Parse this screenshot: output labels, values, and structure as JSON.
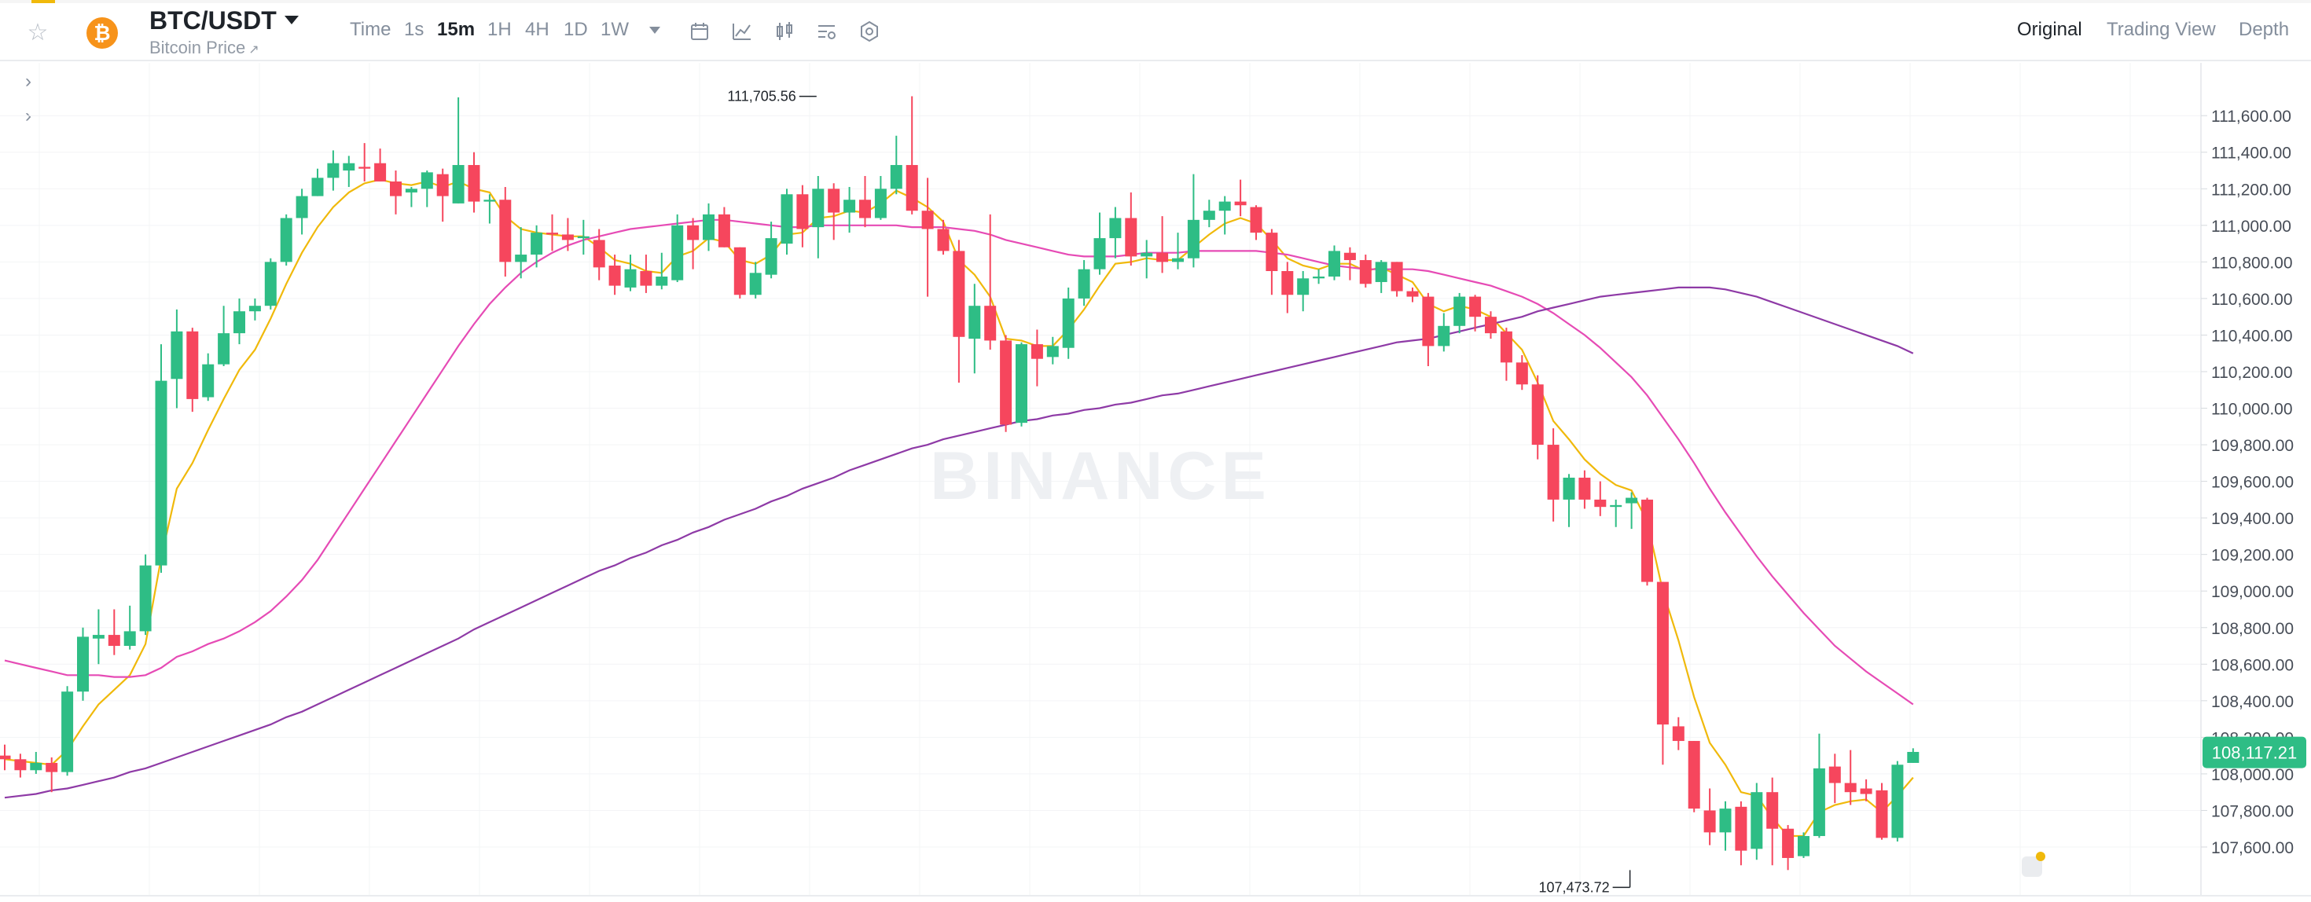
{
  "header": {
    "pair": "BTC/USDT",
    "subtitle": "Bitcoin Price",
    "subtitle_arrow": "↗",
    "coin_symbol": "₿",
    "timeframes": [
      {
        "label": "Time",
        "active": false
      },
      {
        "label": "1s",
        "active": false
      },
      {
        "label": "15m",
        "active": true
      },
      {
        "label": "1H",
        "active": false
      },
      {
        "label": "4H",
        "active": false
      },
      {
        "label": "1D",
        "active": false
      },
      {
        "label": "1W",
        "active": false
      }
    ],
    "tools": [
      "calendar-icon",
      "indicator-icon",
      "candle-type-icon",
      "settings-list-icon",
      "hexagon-settings-icon"
    ],
    "views": [
      {
        "label": "Original",
        "active": true
      },
      {
        "label": "Trading View",
        "active": false
      },
      {
        "label": "Depth",
        "active": false
      }
    ]
  },
  "chart_data": {
    "type": "candlestick",
    "watermark": "BINANCE",
    "ylim": [
      107400,
      111800
    ],
    "y_ticks": [
      "111,600.00",
      "111,400.00",
      "111,200.00",
      "111,000.00",
      "110,800.00",
      "110,600.00",
      "110,400.00",
      "110,200.00",
      "110,000.00",
      "109,800.00",
      "109,600.00",
      "109,400.00",
      "109,200.00",
      "109,000.00",
      "108,800.00",
      "108,600.00",
      "108,400.00",
      "108,200.00",
      "108,000.00",
      "107,800.00",
      "107,600.00"
    ],
    "current_price": "108,117.21",
    "high_label": {
      "text": "111,705.56",
      "value": 111705.56,
      "index": 52
    },
    "low_label": {
      "text": "107,473.72",
      "value": 107473.72,
      "index": 104
    },
    "candles": [
      [
        108100,
        108080,
        108160,
        108020
      ],
      [
        108080,
        108020,
        108110,
        107980
      ],
      [
        108020,
        108060,
        108120,
        108000
      ],
      [
        108060,
        108010,
        108090,
        107900
      ],
      [
        108010,
        108450,
        108480,
        107990
      ],
      [
        108450,
        108750,
        108800,
        108400
      ],
      [
        108740,
        108760,
        108900,
        108600
      ],
      [
        108760,
        108700,
        108900,
        108650
      ],
      [
        108700,
        108780,
        108920,
        108680
      ],
      [
        108780,
        109140,
        109200,
        108760
      ],
      [
        109140,
        110150,
        110350,
        109100
      ],
      [
        110160,
        110420,
        110540,
        110000
      ],
      [
        110420,
        110050,
        110440,
        109980
      ],
      [
        110060,
        110240,
        110300,
        110040
      ],
      [
        110240,
        110410,
        110560,
        110230
      ],
      [
        110410,
        110530,
        110600,
        110350
      ],
      [
        110530,
        110560,
        110600,
        110480
      ],
      [
        110560,
        110800,
        110820,
        110540
      ],
      [
        110800,
        111040,
        111060,
        110780
      ],
      [
        111040,
        111160,
        111200,
        110950
      ],
      [
        111160,
        111260,
        111310,
        111160
      ],
      [
        111260,
        111340,
        111410,
        111190
      ],
      [
        111300,
        111340,
        111380,
        111210
      ],
      [
        111320,
        111310,
        111450,
        111240
      ],
      [
        111340,
        111240,
        111420,
        111240
      ],
      [
        111240,
        111160,
        111300,
        111060
      ],
      [
        111180,
        111200,
        111210,
        111100
      ],
      [
        111200,
        111290,
        111300,
        111100
      ],
      [
        111280,
        111160,
        111310,
        111020
      ],
      [
        111120,
        111330,
        111700,
        111120
      ],
      [
        111330,
        111130,
        111400,
        111070
      ],
      [
        111130,
        111140,
        111170,
        111010
      ],
      [
        111140,
        110800,
        111210,
        110720
      ],
      [
        110800,
        110840,
        110990,
        110710
      ],
      [
        110840,
        110960,
        111000,
        110770
      ],
      [
        110960,
        110950,
        111060,
        110860
      ],
      [
        110950,
        110920,
        111040,
        110860
      ],
      [
        110930,
        110940,
        111030,
        110840
      ],
      [
        110920,
        110770,
        110980,
        110700
      ],
      [
        110780,
        110670,
        110840,
        110620
      ],
      [
        110660,
        110760,
        110840,
        110640
      ],
      [
        110750,
        110670,
        110840,
        110630
      ],
      [
        110670,
        110720,
        110850,
        110650
      ],
      [
        110700,
        111000,
        111060,
        110690
      ],
      [
        111000,
        110920,
        111040,
        110760
      ],
      [
        110920,
        111060,
        111120,
        110860
      ],
      [
        111060,
        110880,
        111100,
        110880
      ],
      [
        110880,
        110620,
        110880,
        110600
      ],
      [
        110620,
        110740,
        110800,
        110600
      ],
      [
        110730,
        110930,
        111020,
        110710
      ],
      [
        110900,
        111170,
        111200,
        110840
      ],
      [
        111170,
        110980,
        111220,
        110880
      ],
      [
        110990,
        111200,
        111270,
        110820
      ],
      [
        111200,
        111070,
        111230,
        110920
      ],
      [
        111070,
        111140,
        111210,
        110960
      ],
      [
        111140,
        111040,
        111270,
        110990
      ],
      [
        111040,
        111200,
        111270,
        111030
      ],
      [
        111200,
        111330,
        111490,
        111170
      ],
      [
        111330,
        111080,
        111706,
        111060
      ],
      [
        111080,
        110980,
        111260,
        110610
      ],
      [
        110980,
        110860,
        111030,
        110840
      ],
      [
        110860,
        110390,
        110920,
        110140
      ],
      [
        110380,
        110560,
        110680,
        110190
      ],
      [
        110560,
        110370,
        111060,
        110320
      ],
      [
        110370,
        109910,
        110400,
        109870
      ],
      [
        109920,
        110350,
        110360,
        109900
      ],
      [
        110350,
        110270,
        110430,
        110120
      ],
      [
        110280,
        110340,
        110390,
        110240
      ],
      [
        110330,
        110600,
        110660,
        110270
      ],
      [
        110600,
        110760,
        110810,
        110560
      ],
      [
        110760,
        110930,
        111070,
        110730
      ],
      [
        110930,
        111040,
        111100,
        110820
      ],
      [
        111040,
        110830,
        111180,
        110780
      ],
      [
        110830,
        110850,
        110920,
        110710
      ],
      [
        110850,
        110800,
        111050,
        110740
      ],
      [
        110800,
        110820,
        110960,
        110760
      ],
      [
        110820,
        111030,
        111280,
        110770
      ],
      [
        111030,
        111080,
        111140,
        110990
      ],
      [
        111080,
        111130,
        111160,
        110950
      ],
      [
        111130,
        111110,
        111250,
        111050
      ],
      [
        111100,
        110960,
        111110,
        110920
      ],
      [
        110960,
        110750,
        110980,
        110620
      ],
      [
        110750,
        110620,
        110800,
        110520
      ],
      [
        110620,
        110710,
        110750,
        110530
      ],
      [
        110710,
        110720,
        110760,
        110680
      ],
      [
        110720,
        110860,
        110890,
        110700
      ],
      [
        110850,
        110810,
        110880,
        110700
      ],
      [
        110810,
        110680,
        110840,
        110660
      ],
      [
        110690,
        110800,
        110810,
        110630
      ],
      [
        110800,
        110640,
        110800,
        110610
      ],
      [
        110640,
        110610,
        110660,
        110580
      ],
      [
        110610,
        110340,
        110630,
        110230
      ],
      [
        110340,
        110450,
        110520,
        110310
      ],
      [
        110450,
        110610,
        110630,
        110410
      ],
      [
        110610,
        110500,
        110620,
        110420
      ],
      [
        110500,
        110410,
        110530,
        110380
      ],
      [
        110420,
        110250,
        110440,
        110150
      ],
      [
        110250,
        110130,
        110290,
        110100
      ],
      [
        110130,
        109800,
        110180,
        109720
      ],
      [
        109800,
        109500,
        109890,
        109380
      ],
      [
        109500,
        109620,
        109640,
        109350
      ],
      [
        109620,
        109500,
        109660,
        109450
      ],
      [
        109500,
        109460,
        109600,
        109410
      ],
      [
        109460,
        109470,
        109500,
        109350
      ],
      [
        109480,
        109510,
        109540,
        109340
      ],
      [
        109500,
        109050,
        109510,
        109030
      ],
      [
        109050,
        108270,
        109050,
        108050
      ],
      [
        108260,
        108180,
        108310,
        108130
      ],
      [
        108180,
        107810,
        108180,
        107790
      ],
      [
        107800,
        107680,
        107920,
        107610
      ],
      [
        107680,
        107810,
        107850,
        107580
      ],
      [
        107820,
        107580,
        107850,
        107500
      ],
      [
        107590,
        107900,
        107950,
        107530
      ],
      [
        107900,
        107700,
        107980,
        107500
      ],
      [
        107700,
        107540,
        107720,
        107474
      ],
      [
        107550,
        107660,
        107680,
        107540
      ],
      [
        107660,
        108030,
        108220,
        107650
      ],
      [
        108040,
        107950,
        108110,
        107840
      ],
      [
        107950,
        107900,
        108130,
        107830
      ],
      [
        107920,
        107890,
        107970,
        107850
      ],
      [
        107910,
        107650,
        107950,
        107640
      ],
      [
        107650,
        108050,
        108070,
        107630
      ],
      [
        108060,
        108120,
        108140,
        108060
      ]
    ],
    "series": [
      {
        "name": "",
        "color": "#f0b90b",
        "values": [
          108080,
          108070,
          108060,
          108050,
          108130,
          108260,
          108380,
          108460,
          108540,
          108710,
          109180,
          109560,
          109700,
          109880,
          110050,
          110210,
          110320,
          110490,
          110680,
          110850,
          110990,
          111100,
          111180,
          111230,
          111250,
          111230,
          111220,
          111240,
          111210,
          111240,
          111200,
          111180,
          111050,
          110980,
          110960,
          110950,
          110940,
          110940,
          110880,
          110810,
          110790,
          110750,
          110740,
          110830,
          110860,
          110930,
          110910,
          110810,
          110790,
          110840,
          110950,
          110960,
          111040,
          111050,
          111080,
          111070,
          111120,
          111190,
          111150,
          111100,
          111020,
          110810,
          110730,
          110610,
          110380,
          110370,
          110340,
          110340,
          110430,
          110540,
          110670,
          110790,
          110800,
          110820,
          110810,
          110810,
          110880,
          110950,
          111010,
          111040,
          111010,
          110920,
          110820,
          110780,
          110760,
          110790,
          110790,
          110750,
          110770,
          110730,
          110690,
          110570,
          110530,
          110560,
          110540,
          110500,
          110410,
          110320,
          110140,
          109930,
          109830,
          109720,
          109640,
          109580,
          109550,
          109380,
          109000,
          108730,
          108420,
          108170,
          108050,
          107900,
          107880,
          107760,
          107660,
          107660,
          107790,
          107830,
          107850,
          107860,
          107790,
          107880,
          107980
        ]
      },
      {
        "name": "",
        "color": "#e64bb5",
        "values": [
          108620,
          108600,
          108580,
          108560,
          108540,
          108540,
          108540,
          108530,
          108530,
          108540,
          108580,
          108640,
          108670,
          108710,
          108740,
          108780,
          108830,
          108890,
          108970,
          109060,
          109170,
          109300,
          109430,
          109560,
          109690,
          109820,
          109950,
          110080,
          110210,
          110340,
          110460,
          110570,
          110660,
          110740,
          110800,
          110850,
          110890,
          110920,
          110940,
          110960,
          110980,
          110990,
          111000,
          111010,
          111020,
          111030,
          111030,
          111020,
          111010,
          111000,
          110990,
          110990,
          111000,
          111000,
          111000,
          111000,
          111000,
          111000,
          110990,
          110990,
          110990,
          110980,
          110970,
          110950,
          110920,
          110900,
          110880,
          110860,
          110840,
          110830,
          110830,
          110830,
          110840,
          110850,
          110850,
          110850,
          110860,
          110860,
          110860,
          110860,
          110860,
          110850,
          110840,
          110820,
          110800,
          110780,
          110770,
          110760,
          110760,
          110760,
          110760,
          110750,
          110730,
          110710,
          110690,
          110670,
          110640,
          110610,
          110570,
          110520,
          110460,
          110400,
          110330,
          110250,
          110170,
          110070,
          109950,
          109830,
          109700,
          109560,
          109430,
          109310,
          109190,
          109080,
          108980,
          108880,
          108790,
          108700,
          108630,
          108560,
          108500,
          108440,
          108380
        ]
      },
      {
        "name": "",
        "color": "#8e3aa6",
        "values": [
          107870,
          107880,
          107890,
          107910,
          107920,
          107940,
          107960,
          107980,
          108010,
          108030,
          108060,
          108090,
          108120,
          108150,
          108180,
          108210,
          108240,
          108270,
          108310,
          108340,
          108380,
          108420,
          108460,
          108500,
          108540,
          108580,
          108620,
          108660,
          108700,
          108740,
          108790,
          108830,
          108870,
          108910,
          108950,
          108990,
          109030,
          109070,
          109110,
          109140,
          109180,
          109210,
          109250,
          109280,
          109320,
          109350,
          109390,
          109420,
          109450,
          109490,
          109520,
          109560,
          109590,
          109620,
          109660,
          109690,
          109720,
          109750,
          109780,
          109800,
          109830,
          109850,
          109870,
          109890,
          109910,
          109930,
          109940,
          109960,
          109970,
          109990,
          110000,
          110020,
          110030,
          110050,
          110070,
          110080,
          110100,
          110120,
          110140,
          110160,
          110180,
          110200,
          110220,
          110240,
          110260,
          110280,
          110300,
          110320,
          110340,
          110360,
          110370,
          110380,
          110400,
          110420,
          110440,
          110460,
          110480,
          110500,
          110530,
          110550,
          110570,
          110590,
          110610,
          110620,
          110630,
          110640,
          110650,
          110660,
          110660,
          110660,
          110650,
          110630,
          110610,
          110580,
          110550,
          110520,
          110490,
          110460,
          110430,
          110400,
          110370,
          110340,
          110300
        ]
      }
    ]
  }
}
